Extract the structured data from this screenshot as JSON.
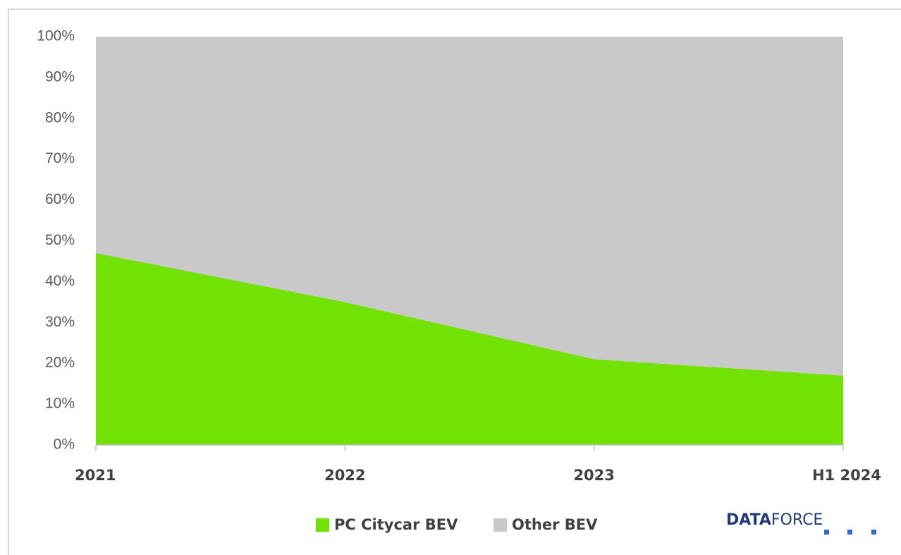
{
  "chart_data": {
    "type": "stacked-area",
    "categories": [
      "2021",
      "2022",
      "2023",
      "H1 2024"
    ],
    "series": [
      {
        "name": "PC Citycar BEV",
        "color": "#72e205",
        "values": [
          47,
          35,
          21,
          17
        ]
      },
      {
        "name": "Other BEV",
        "color": "#c9c9c9",
        "values": [
          53,
          65,
          79,
          83
        ]
      }
    ],
    "ylim": [
      0,
      100
    ],
    "yticks": [
      {
        "value": 0,
        "label": "0%"
      },
      {
        "value": 10,
        "label": "10%"
      },
      {
        "value": 20,
        "label": "20%"
      },
      {
        "value": 30,
        "label": "30%"
      },
      {
        "value": 40,
        "label": "40%"
      },
      {
        "value": 50,
        "label": "50%"
      },
      {
        "value": 60,
        "label": "60%"
      },
      {
        "value": 70,
        "label": "70%"
      },
      {
        "value": 80,
        "label": "80%"
      },
      {
        "value": 90,
        "label": "90%"
      },
      {
        "value": 100,
        "label": "100%"
      }
    ],
    "legend": "bottom"
  },
  "brand": {
    "bold": "DATA",
    "light": "FORCE"
  }
}
